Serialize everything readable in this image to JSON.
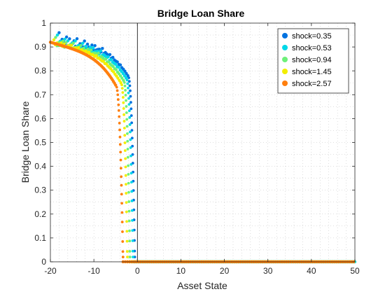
{
  "chart_data": {
    "type": "scatter",
    "title": "Bridge Loan Share",
    "xlabel": "Asset State",
    "ylabel": "Bridge Loan Share",
    "xlim": [
      -20,
      50
    ],
    "ylim": [
      0,
      1
    ],
    "xticks": [
      -20,
      -10,
      0,
      10,
      20,
      30,
      40,
      50
    ],
    "yticks": [
      0,
      0.1,
      0.2,
      0.3,
      0.4,
      0.5,
      0.6,
      0.7,
      0.8,
      0.9,
      1
    ],
    "x_tick_labels": [
      "-20",
      "-10",
      "0",
      "10",
      "20",
      "30",
      "40",
      "50"
    ],
    "y_tick_labels": [
      "0",
      "0.1",
      "0.2",
      "0.3",
      "0.4",
      "0.5",
      "0.6",
      "0.7",
      "0.8",
      "0.9",
      "1"
    ],
    "grid": "minor dotted",
    "legend_position": "top-right",
    "reference_line_x": 0,
    "series": [
      {
        "name": "shock=0.35",
        "color": "#0072e0",
        "x_start": -18.0,
        "x_end": -2.2,
        "steps": 46,
        "cliff": -0.6,
        "top": 0.96,
        "wave": 0.05
      },
      {
        "name": "shock=0.53",
        "color": "#00d8e8",
        "x_start": -18.4,
        "x_end": -2.6,
        "steps": 46,
        "cliff": -1.0,
        "top": 0.95,
        "wave": 0.045
      },
      {
        "name": "shock=0.94",
        "color": "#6ef07a",
        "x_start": -18.8,
        "x_end": -3.2,
        "steps": 46,
        "cliff": -1.7,
        "top": 0.94,
        "wave": 0.035
      },
      {
        "name": "shock=1.45",
        "color": "#f2ee00",
        "x_start": -19.2,
        "x_end": -3.8,
        "steps": 46,
        "cliff": -2.3,
        "top": 0.93,
        "wave": 0.02
      },
      {
        "name": "shock=2.57",
        "color": "#ff7f0e",
        "x_start": -20.0,
        "x_end": -5.0,
        "steps": 60,
        "cliff": -3.3,
        "top": 0.92,
        "wave": 0.0
      }
    ],
    "legend": [
      {
        "label": "shock=0.35",
        "color": "#0072e0"
      },
      {
        "label": "shock=0.53",
        "color": "#00d8e8"
      },
      {
        "label": "shock=0.94",
        "color": "#6ef07a"
      },
      {
        "label": "shock=1.45",
        "color": "#f2ee00"
      },
      {
        "label": "shock=2.57",
        "color": "#ff7f0e"
      }
    ]
  }
}
